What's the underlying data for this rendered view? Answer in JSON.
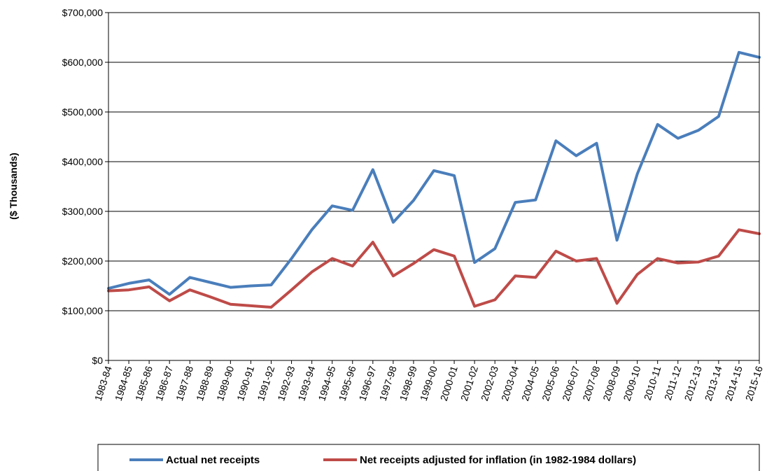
{
  "chart_data": {
    "type": "line",
    "title": "",
    "xlabel": "",
    "ylabel": "($ Thousands)",
    "ylim": [
      0,
      700000
    ],
    "yticks": [
      "$0",
      "$100,000",
      "$200,000",
      "$300,000",
      "$400,000",
      "$500,000",
      "$600,000",
      "$700,000"
    ],
    "ytick_values": [
      0,
      100000,
      200000,
      300000,
      400000,
      500000,
      600000,
      700000
    ],
    "grid": "horizontal",
    "legend_position": "bottom",
    "categories": [
      "1983-84",
      "1984-85",
      "1985-86",
      "1986-87",
      "1987-88",
      "1988-89",
      "1989-90",
      "1990-91",
      "1991-92",
      "1992-93",
      "1993-94",
      "1994-95",
      "1995-96",
      "1996-97",
      "1997-98",
      "1998-99",
      "1999-00",
      "2000-01",
      "2001-02",
      "2002-03",
      "2003-04",
      "2004-05",
      "2005-06",
      "2006-07",
      "2007-08",
      "2008-09",
      "2009-10",
      "2010-11",
      "2011-12",
      "2012-13",
      "2013-14",
      "2014-15",
      "2015-16"
    ],
    "series": [
      {
        "name": "Actual net receipts",
        "color": "#4a7ebb",
        "values": [
          145000,
          155000,
          162000,
          133000,
          167000,
          157000,
          147000,
          150000,
          152000,
          205000,
          263000,
          311000,
          302000,
          384000,
          278000,
          322000,
          382000,
          372000,
          197000,
          225000,
          318000,
          323000,
          442000,
          412000,
          437000,
          242000,
          375000,
          475000,
          447000,
          463000,
          491000,
          620000,
          610000
        ]
      },
      {
        "name": "Net receipts adjusted for inflation (in 1982-1984 dollars)",
        "color": "#be4b48",
        "values": [
          140000,
          142000,
          148000,
          120000,
          142000,
          128000,
          113000,
          110000,
          107000,
          142000,
          178000,
          205000,
          190000,
          238000,
          170000,
          195000,
          223000,
          210000,
          109000,
          122000,
          170000,
          167000,
          220000,
          200000,
          205000,
          115000,
          173000,
          205000,
          196000,
          198000,
          210000,
          263000,
          255000
        ]
      }
    ]
  }
}
